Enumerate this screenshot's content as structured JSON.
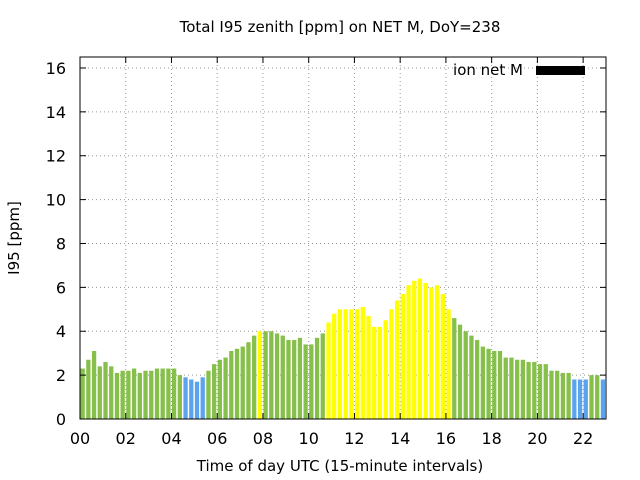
{
  "chart_data": {
    "type": "bar",
    "title": "Total I95 zenith [ppm] on NET M, DoY=238",
    "xlabel": "Time of day UTC (15-minute intervals)",
    "ylabel": "I95 [ppm]",
    "legend": {
      "label": "ion net M",
      "color": "#000000",
      "placement": "top-right"
    },
    "xlim": [
      0,
      23
    ],
    "ylim": [
      0,
      16.5
    ],
    "xticks": [
      "00",
      "02",
      "04",
      "06",
      "08",
      "10",
      "12",
      "14",
      "16",
      "18",
      "20",
      "22"
    ],
    "yticks": [
      "0",
      "2",
      "4",
      "6",
      "8",
      "10",
      "12",
      "14",
      "16"
    ],
    "grid": true,
    "colors": {
      "green": "#86c04b",
      "yellow": "#ffff00",
      "blue": "#5ba3ee"
    },
    "values": [
      2.3,
      2.7,
      3.1,
      2.4,
      2.6,
      2.4,
      2.1,
      2.2,
      2.2,
      2.3,
      2.1,
      2.2,
      2.2,
      2.3,
      2.3,
      2.3,
      2.3,
      2.0,
      1.9,
      1.8,
      1.7,
      1.9,
      2.2,
      2.5,
      2.7,
      2.8,
      3.1,
      3.2,
      3.3,
      3.5,
      3.8,
      4.0,
      4.0,
      4.0,
      3.9,
      3.8,
      3.6,
      3.6,
      3.7,
      3.4,
      3.4,
      3.7,
      3.9,
      4.4,
      4.8,
      5.0,
      5.0,
      5.0,
      5.0,
      5.1,
      4.7,
      4.2,
      4.2,
      4.5,
      5.0,
      5.4,
      5.7,
      6.1,
      6.3,
      6.4,
      6.2,
      6.0,
      6.1,
      5.7,
      5.0,
      4.6,
      4.3,
      4.0,
      3.8,
      3.6,
      3.3,
      3.2,
      3.1,
      3.1,
      2.8,
      2.8,
      2.7,
      2.7,
      2.6,
      2.6,
      2.5,
      2.5,
      2.2,
      2.2,
      2.1,
      2.1,
      1.8,
      1.8,
      1.8,
      2.0,
      2.0,
      1.8
    ],
    "bar_colors": [
      "green",
      "green",
      "green",
      "green",
      "green",
      "green",
      "green",
      "green",
      "green",
      "green",
      "green",
      "green",
      "green",
      "green",
      "green",
      "green",
      "green",
      "green",
      "blue",
      "blue",
      "blue",
      "blue",
      "green",
      "green",
      "green",
      "green",
      "green",
      "green",
      "green",
      "green",
      "green",
      "yellow",
      "green",
      "green",
      "green",
      "green",
      "green",
      "green",
      "green",
      "green",
      "green",
      "green",
      "green",
      "yellow",
      "yellow",
      "yellow",
      "yellow",
      "yellow",
      "yellow",
      "yellow",
      "yellow",
      "yellow",
      "yellow",
      "yellow",
      "yellow",
      "yellow",
      "yellow",
      "yellow",
      "yellow",
      "yellow",
      "yellow",
      "yellow",
      "yellow",
      "yellow",
      "yellow",
      "green",
      "green",
      "green",
      "green",
      "green",
      "green",
      "green",
      "green",
      "green",
      "green",
      "green",
      "green",
      "green",
      "green",
      "green",
      "green",
      "green",
      "green",
      "green",
      "green",
      "green",
      "blue",
      "blue",
      "blue",
      "green",
      "green",
      "blue"
    ]
  }
}
